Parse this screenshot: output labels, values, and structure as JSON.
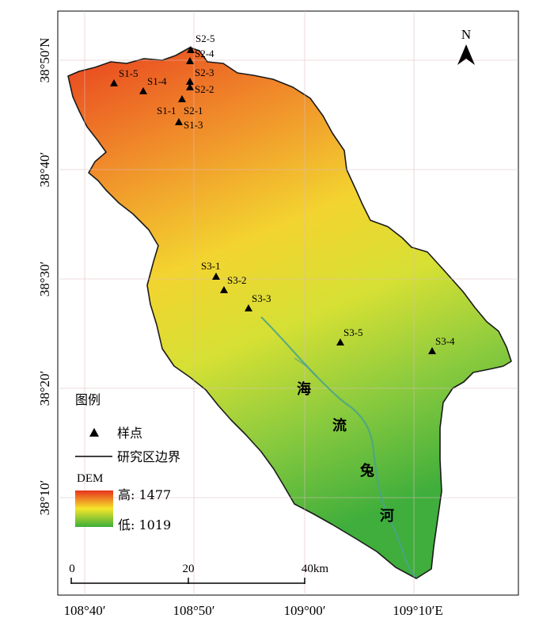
{
  "latitude_labels": [
    "38°50′N",
    "38°40′",
    "38°30′",
    "38°20′",
    "38°10′"
  ],
  "longitude_labels": [
    "108°40′",
    "108°50′",
    "109°00′",
    "109°10′E"
  ],
  "north_arrow": {
    "letter": "N",
    "icon": "north-arrow-icon"
  },
  "sites": [
    {
      "id": "S2-5"
    },
    {
      "id": "S2-4"
    },
    {
      "id": "S2-3"
    },
    {
      "id": "S2-2"
    },
    {
      "id": "S2-1"
    },
    {
      "id": "S1-1"
    },
    {
      "id": "S1-3"
    },
    {
      "id": "S1-4"
    },
    {
      "id": "S1-5"
    },
    {
      "id": "S3-1"
    },
    {
      "id": "S3-2"
    },
    {
      "id": "S3-3"
    },
    {
      "id": "S3-5"
    },
    {
      "id": "S3-4"
    }
  ],
  "river_label_chars": [
    "海",
    "流",
    "兔",
    "河"
  ],
  "legend": {
    "title": "图例",
    "sample_point_label": "样点",
    "boundary_label": "研究区边界",
    "dem_title": "DEM",
    "dem_high": "高: 1477",
    "dem_low": "低: 1019",
    "dem_high_color": "#e8321e",
    "dem_mid_color": "#f5e62a",
    "dem_low_color": "#3cae3a"
  },
  "scale_bar": {
    "labels": [
      "0",
      "20",
      "40km"
    ]
  },
  "colors": {
    "boundary": "#1a1a1a",
    "river": "#4aa38a",
    "grid": "#d9c6c6"
  }
}
